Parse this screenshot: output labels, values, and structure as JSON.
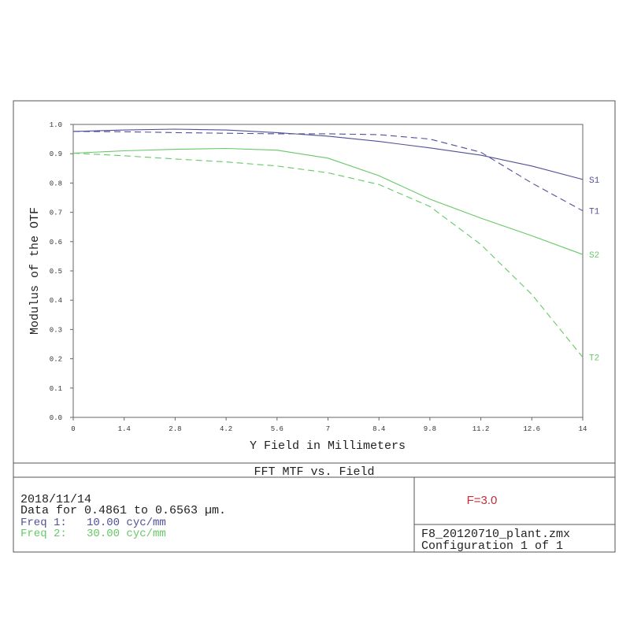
{
  "chart_data": {
    "type": "line",
    "title": "FFT MTF vs. Field",
    "x_label": "Y Field in Millimeters",
    "y_label": "Modulus of the OTF",
    "x": [
      0,
      1.4,
      2.8,
      4.2,
      5.6,
      7,
      8.4,
      9.8,
      11.2,
      12.6,
      14
    ],
    "series": [
      {
        "name": "S1",
        "color": "#50509a",
        "style": "solid",
        "values": [
          0.976,
          0.981,
          0.984,
          0.981,
          0.972,
          0.96,
          0.942,
          0.92,
          0.895,
          0.858,
          0.812
        ]
      },
      {
        "name": "T1",
        "color": "#50509a",
        "style": "dashed",
        "values": [
          0.976,
          0.975,
          0.972,
          0.97,
          0.968,
          0.968,
          0.965,
          0.95,
          0.905,
          0.8,
          0.705
        ]
      },
      {
        "name": "S2",
        "color": "#66c866",
        "style": "solid",
        "values": [
          0.902,
          0.91,
          0.915,
          0.918,
          0.912,
          0.885,
          0.825,
          0.745,
          0.68,
          0.62,
          0.556
        ]
      },
      {
        "name": "T2",
        "color": "#66c866",
        "style": "dashed",
        "values": [
          0.902,
          0.893,
          0.882,
          0.872,
          0.858,
          0.835,
          0.795,
          0.72,
          0.59,
          0.42,
          0.205
        ]
      }
    ],
    "xlim": [
      0,
      14
    ],
    "ylim": [
      0,
      1
    ],
    "xticks": [
      0,
      1.4,
      2.8,
      4.2,
      5.6,
      7,
      8.4,
      9.8,
      11.2,
      12.6,
      14
    ],
    "yticks": [
      {
        "value": 0,
        "label": "0.0"
      },
      0.1,
      0.2,
      0.3,
      0.4,
      0.5,
      0.6,
      0.7,
      0.8,
      0.9,
      {
        "value": 1,
        "label": "1.0"
      }
    ],
    "grid": false
  },
  "info": {
    "date": "2018/11/14",
    "data_range": "Data for 0.4861 to 0.6563 µm.",
    "freq1": "Freq 1:   10.00 cyc/mm",
    "freq2": "Freq 2:   30.00 cyc/mm",
    "fnumber": "F=3.0",
    "file": "F8_20120710_plant.zmx",
    "config": "Configuration 1 of 1"
  }
}
